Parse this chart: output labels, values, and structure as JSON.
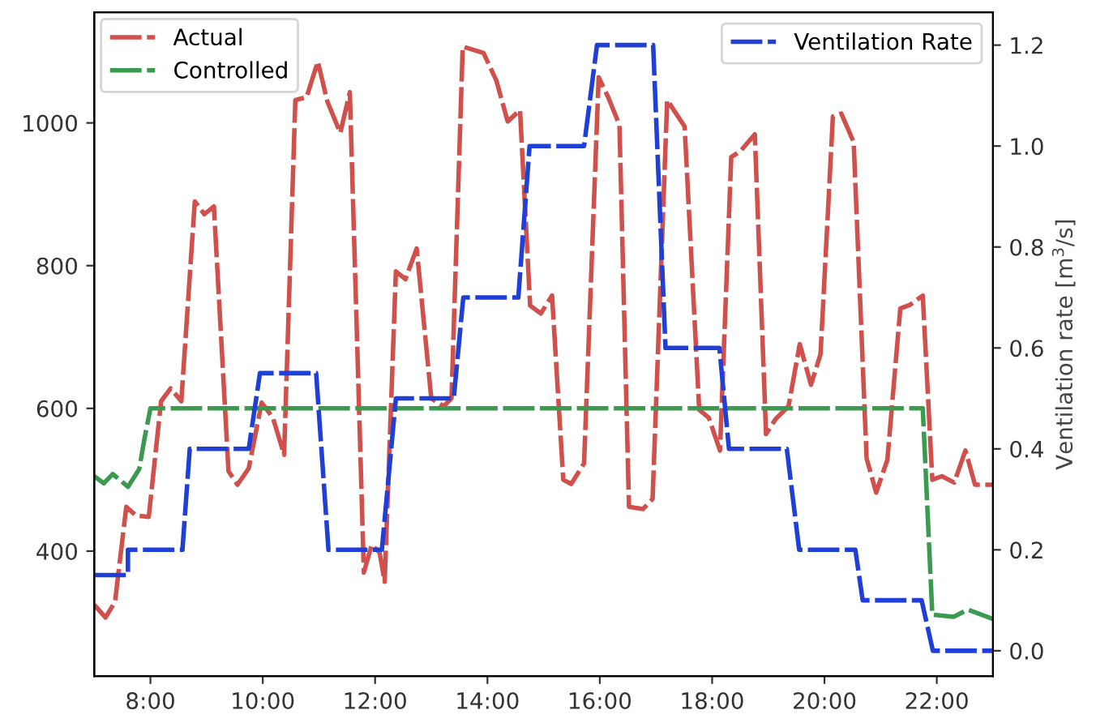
{
  "chart_data": {
    "type": "line",
    "y2label": "Ventilation rate [m$^{3}$/s]",
    "xlim": [
      7,
      23
    ],
    "xticks": [
      {
        "value": 8,
        "label": "8:00"
      },
      {
        "value": 10,
        "label": "10:00"
      },
      {
        "value": 12,
        "label": "12:00"
      },
      {
        "value": 14,
        "label": "14:00"
      },
      {
        "value": 16,
        "label": "16:00"
      },
      {
        "value": 18,
        "label": "18:00"
      },
      {
        "value": 20,
        "label": "20:00"
      },
      {
        "value": 22,
        "label": "22:00"
      }
    ],
    "ylim": [
      225,
      1155
    ],
    "yticks": [
      400,
      600,
      800,
      1000
    ],
    "y2lim": [
      -0.05,
      1.265
    ],
    "y2ticks": [
      {
        "value": 0,
        "label": "0.0"
      },
      {
        "value": 0.2,
        "label": "0.2"
      },
      {
        "value": 0.4,
        "label": "0.4"
      },
      {
        "value": 0.6,
        "label": "0.6"
      },
      {
        "value": 0.8,
        "label": "0.8"
      },
      {
        "value": 1.0,
        "label": "1.0"
      },
      {
        "value": 1.2,
        "label": "1.2"
      }
    ],
    "legend": "top left",
    "line_style": "dashed",
    "grid": false,
    "series": [
      {
        "name": "Actual",
        "color": "#d0504c",
        "x": [
          7.0,
          7.2,
          7.37,
          7.57,
          7.74,
          7.97,
          8.19,
          8.36,
          8.55,
          8.79,
          8.96,
          9.13,
          9.39,
          9.55,
          9.75,
          9.98,
          10.18,
          10.38,
          10.58,
          10.78,
          10.98,
          11.15,
          11.38,
          11.55,
          11.8,
          11.94,
          12.08,
          12.17,
          12.37,
          12.54,
          12.74,
          13.0,
          13.22,
          13.36,
          13.56,
          13.93,
          14.16,
          14.36,
          14.58,
          14.76,
          14.95,
          15.15,
          15.35,
          15.49,
          15.72,
          15.98,
          16.15,
          16.35,
          16.52,
          16.77,
          16.94,
          17.2,
          17.51,
          17.77,
          17.94,
          18.14,
          18.34,
          18.51,
          18.76,
          18.96,
          19.13,
          19.36,
          19.56,
          19.76,
          19.93,
          20.15,
          20.3,
          20.52,
          20.75,
          20.92,
          21.12,
          21.35,
          21.52,
          21.75,
          21.92,
          22.09,
          22.31,
          22.51,
          22.68,
          22.88,
          23.0
        ],
        "values": [
          325,
          307,
          329,
          462,
          450,
          448,
          610,
          628,
          610,
          890,
          872,
          883,
          512,
          493,
          516,
          608,
          587,
          535,
          1032,
          1036,
          1086,
          1030,
          986,
          1043,
          370,
          409,
          398,
          357,
          792,
          781,
          824,
          614,
          603,
          614,
          1107,
          1098,
          1059,
          1002,
          1018,
          744,
          733,
          758,
          500,
          494,
          523,
          1064,
          1036,
          997,
          462,
          459,
          473,
          1032,
          995,
          598,
          587,
          541,
          952,
          961,
          984,
          564,
          585,
          603,
          690,
          633,
          676,
          1009,
          1013,
          973,
          530,
          482,
          528,
          740,
          745,
          758,
          500,
          505,
          496,
          541,
          493,
          493,
          493
        ]
      },
      {
        "name": "Controlled",
        "color": "#3c9a50",
        "x": [
          7.0,
          7.17,
          7.33,
          7.6,
          7.8,
          7.9,
          8.0,
          21.75,
          21.92,
          22.3,
          22.55,
          23.0
        ],
        "values": [
          505,
          495,
          508,
          490,
          515,
          560,
          600,
          600,
          311,
          308,
          318,
          305
        ]
      },
      {
        "name": "Ventilation Rate",
        "color": "#1f3fd6",
        "axis": "y2",
        "x": [
          7.0,
          7.6,
          7.6,
          8.57,
          8.7,
          9.75,
          9.95,
          10.95,
          11.17,
          12.12,
          12.37,
          13.4,
          13.57,
          14.55,
          14.75,
          15.72,
          15.95,
          16.95,
          17.17,
          18.13,
          18.3,
          19.33,
          19.55,
          20.55,
          20.68,
          21.73,
          21.93,
          23.0
        ],
        "values": [
          0.15,
          0.15,
          0.2,
          0.2,
          0.4,
          0.4,
          0.55,
          0.55,
          0.2,
          0.2,
          0.5,
          0.5,
          0.7,
          0.7,
          1.0,
          1.0,
          1.2,
          1.2,
          0.6,
          0.6,
          0.4,
          0.4,
          0.2,
          0.2,
          0.1,
          0.1,
          0.0,
          0.0
        ]
      }
    ]
  }
}
